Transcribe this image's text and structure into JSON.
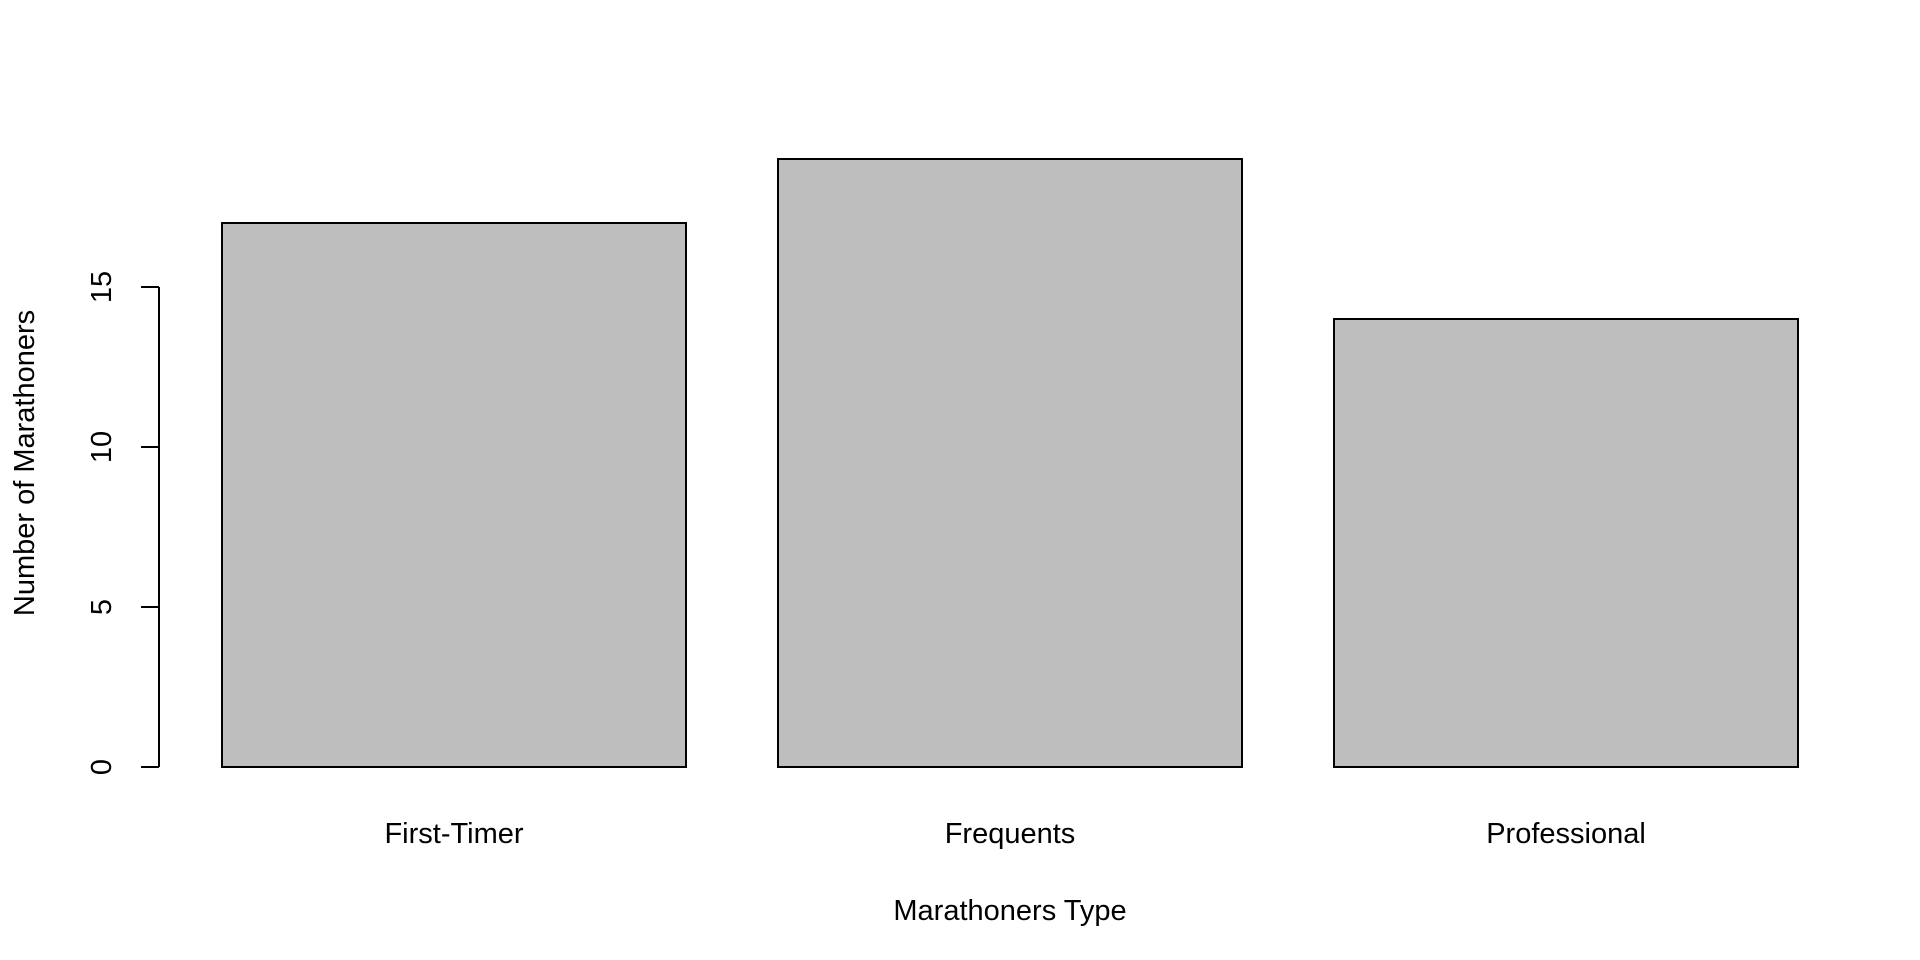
{
  "chart_data": {
    "type": "bar",
    "categories": [
      "First-Timer",
      "Frequents",
      "Professional"
    ],
    "values": [
      17,
      19,
      14
    ],
    "xlabel": "Marathoners Type",
    "ylabel": "Number of Marathoners",
    "ylim": [
      0,
      19
    ],
    "y_ticks": [
      0,
      5,
      10,
      15
    ],
    "grid": false,
    "legend": "none",
    "colors": {
      "bar_fill": "#bebebe",
      "bar_stroke": "#000000",
      "axis": "#000000",
      "background": "#ffffff"
    }
  }
}
